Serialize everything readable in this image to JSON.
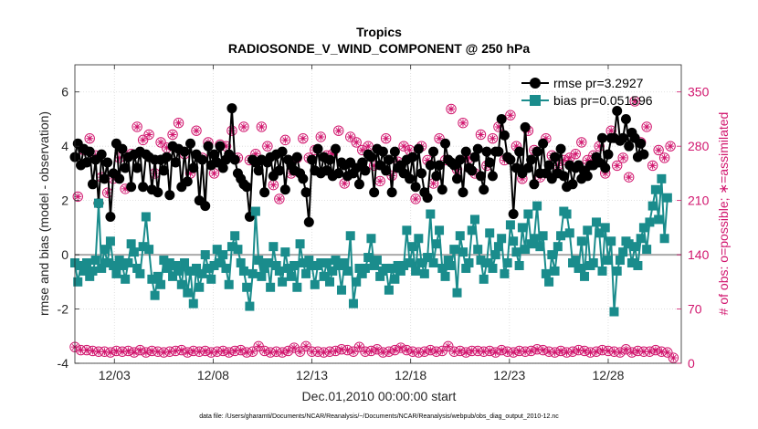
{
  "chart_data": {
    "type": "line",
    "title": "Tropics",
    "subtitle": "RADIOSONDE_V_WIND_COMPONENT @ 250 hPa",
    "xlabel": "Dec.01,2010 00:00:00 start",
    "ylabel": "rmse and bias (model - observation)",
    "ylabel_right": "# of obs: o=possible; ∗=assimilated",
    "footer": "data file: /Users/gharamti/Documents/NCAR/Reanalysis/~/Documents/NCAR/Reanalysis/webpub/obs_diag_output_2010-12.nc",
    "xlim": [
      1,
      31.7
    ],
    "ylim": [
      -4,
      7
    ],
    "ylim_right": [
      0,
      385
    ],
    "x_ticks": [
      3,
      8,
      13,
      18,
      23,
      28
    ],
    "x_tick_labels": [
      "12/03",
      "12/08",
      "12/13",
      "12/18",
      "12/23",
      "12/28"
    ],
    "y_ticks": [
      -4,
      -2,
      0,
      2,
      4,
      6
    ],
    "y_tick_labels": [
      "-4",
      "-2",
      "0",
      "2",
      "4",
      "6"
    ],
    "y_ticks_right": [
      0,
      70,
      140,
      210,
      280,
      350
    ],
    "y_tick_labels_right": [
      "0",
      "70",
      "140",
      "210",
      "280",
      "350"
    ],
    "grid": true,
    "legend_position": "top-right",
    "series": [
      {
        "name": "rmse pr=3.2927",
        "color": "#000000",
        "marker": "circle",
        "values": [
          3.6,
          4.1,
          3.3,
          3.9,
          3.4,
          3.8,
          2.6,
          3.5,
          1.9,
          3.7,
          2.8,
          3.4,
          1.4,
          3.0,
          4.1,
          2.8,
          3.9,
          3.2,
          3.6,
          2.5,
          3.7,
          3.2,
          3.8,
          2.5,
          3.7,
          3.6,
          2.4,
          3.5,
          2.3,
          3.5,
          3.1,
          3.6,
          2.2,
          4.0,
          3.4,
          3.9,
          2.5,
          3.8,
          2.7,
          4.1,
          3.2,
          3.7,
          2.0,
          3.5,
          1.8,
          4.0,
          3.3,
          3.7,
          3.4,
          4.0,
          3.2,
          3.5,
          3.7,
          5.4,
          3.5,
          3.0,
          2.8,
          2.6,
          2.5,
          1.4,
          3.5,
          3.4,
          3.1,
          3.5,
          2.3,
          3.4,
          3.6,
          2.9,
          3.7,
          3.1,
          3.8,
          2.4,
          3.5,
          3.3,
          3.1,
          3.6,
          3.0,
          2.8,
          2.3,
          1.2,
          3.5,
          3.1,
          3.9,
          3.0,
          3.6,
          3.1,
          3.5,
          2.9,
          3.9,
          3.0,
          3.4,
          3.3,
          2.9,
          3.4,
          3.0,
          3.2,
          2.6,
          3.4,
          3.1,
          3.7,
          3.6,
          2.3,
          3.9,
          3.3,
          3.8,
          3.1,
          3.5,
          2.3,
          3.8,
          3.2,
          3.3,
          3.0,
          3.5,
          2.8,
          3.6,
          2.5,
          3.9,
          3.0,
          2.3,
          2.1,
          3.3,
          3.8,
          2.9,
          3.3,
          2.4,
          4.1,
          3.5,
          3.4,
          3.3,
          2.8,
          3.5,
          2.3,
          3.8,
          3.2,
          3.1,
          3.6,
          3.9,
          2.9,
          2.4,
          3.8,
          3.4,
          2.9,
          3.8,
          3.8,
          5.0,
          4.4,
          3.6,
          3.5,
          1.5,
          3.2,
          3.8,
          3.0,
          4.7,
          3.2,
          3.5,
          2.6,
          3.8,
          3.0,
          4.1,
          3.0,
          3.3,
          2.8,
          3.6,
          3.0,
          3.9,
          2.9,
          2.5,
          3.3,
          2.6,
          3.2,
          3.3,
          2.8,
          3.1,
          2.9,
          3.3,
          3.3,
          3.6,
          3.4,
          4.3,
          3.2,
          3.7,
          4.3,
          4.3,
          5.3,
          4.2,
          4.3,
          5.0,
          4.0,
          4.5,
          4.3,
          3.6,
          4.1,
          3.7
        ]
      },
      {
        "name": "bias pr=0.051596",
        "color": "#1a8c8c",
        "marker": "square",
        "values": [
          -0.3,
          -1.0,
          -0.4,
          -0.6,
          -0.3,
          -0.8,
          -0.6,
          -0.2,
          1.9,
          -0.5,
          0.2,
          -0.3,
          0.5,
          -0.4,
          -0.7,
          -0.2,
          -0.4,
          -0.9,
          -0.3,
          0.4,
          0.1,
          -0.5,
          -0.7,
          0.3,
          1.4,
          0.2,
          -0.9,
          -1.5,
          -0.8,
          -1.1,
          -0.2,
          -0.5,
          -0.3,
          -0.8,
          -0.4,
          -0.6,
          -1.1,
          -0.3,
          -1.4,
          -0.6,
          -1.8,
          -0.5,
          -1.2,
          -0.7,
          0.0,
          -0.5,
          -0.9,
          -0.4,
          0.2,
          -0.3,
          0.0,
          -0.5,
          -1.1,
          0.3,
          0.7,
          0.2,
          -0.3,
          -0.6,
          -1.2,
          -1.9,
          -0.7,
          1.6,
          -0.2,
          -0.8,
          -0.5,
          -0.3,
          -1.2,
          0.3,
          -0.4,
          -0.6,
          -1.0,
          0.1,
          -0.5,
          -0.8,
          -0.4,
          -1.2,
          0.4,
          -0.3,
          -0.7,
          -0.2,
          -0.4,
          -1.1,
          -0.4,
          -0.3,
          -0.8,
          -0.3,
          -1.0,
          -0.6,
          -0.2,
          -0.4,
          -1.3,
          -0.3,
          -0.6,
          0.7,
          -1.8,
          -1.0,
          -0.5,
          -0.7,
          -0.5,
          -0.1,
          0.6,
          -0.4,
          -0.2,
          -0.8,
          -0.6,
          -0.5,
          -1.3,
          -0.5,
          -0.9,
          -0.4,
          -0.6,
          -0.4,
          0.9,
          -0.3,
          0.3,
          -0.6,
          0.6,
          -0.3,
          -0.7,
          -0.1,
          1.5,
          -0.3,
          0.4,
          0.9,
          -0.5,
          -0.8,
          -0.2,
          -0.4,
          0.2,
          -1.4,
          0.7,
          0.1,
          -0.5,
          -0.3,
          0.9,
          1.3,
          0.2,
          -0.2,
          -0.9,
          -0.3,
          0.8,
          -0.5,
          0.0,
          0.3,
          0.6,
          -0.7,
          -0.3,
          1.1,
          0.5,
          0.1,
          -0.4,
          1.0,
          0.2,
          1.5,
          0.4,
          0.6,
          1.8,
          0.3,
          0.7,
          -0.7,
          -1.0,
          0.0,
          -0.6,
          0.3,
          0.7,
          1.6,
          1.5,
          0.8,
          -0.3,
          -0.2,
          -0.5,
          0.5,
          -0.8,
          0.9,
          -0.4,
          -0.3,
          1.2,
          0.8,
          -0.6,
          1.0,
          -0.2,
          0.5,
          -2.1,
          -0.6,
          -0.2,
          0.1,
          0.5,
          0.4,
          -0.3,
          0.3,
          -0.4,
          0.6,
          1.0,
          0.2,
          1.2,
          1.8,
          2.4,
          1.3,
          2.8,
          0.6,
          2.1
        ]
      }
    ],
    "obs_series": [
      {
        "name": "possible",
        "color": "#d1166e",
        "marker": "circle",
        "values": [
          21,
          215,
          17,
          275,
          17,
          290,
          16,
          268,
          15,
          240,
          15,
          220,
          14,
          238,
          16,
          265,
          15,
          225,
          16,
          270,
          14,
          305,
          17,
          288,
          14,
          295,
          16,
          245,
          15,
          285,
          14,
          278,
          15,
          295,
          16,
          310,
          17,
          270,
          14,
          245,
          16,
          300,
          15,
          265,
          16,
          285,
          14,
          245,
          15,
          282,
          16,
          280,
          14,
          300,
          16,
          265,
          17,
          305,
          14,
          262,
          15,
          270,
          22,
          305,
          16,
          280,
          14,
          230,
          15,
          212,
          14,
          288,
          16,
          245,
          20,
          265,
          15,
          290,
          22,
          265,
          15,
          275,
          15,
          292,
          14,
          268,
          15,
          270,
          16,
          300,
          18,
          232,
          17,
          292,
          15,
          285,
          21,
          275,
          15,
          280,
          16,
          255,
          18,
          235,
          14,
          290,
          15,
          242,
          17,
          260,
          20,
          280,
          17,
          275,
          15,
          212,
          14,
          280,
          15,
          262,
          17,
          232,
          15,
          290,
          16,
          262,
          22,
          328,
          15,
          250,
          16,
          310,
          14,
          265,
          16,
          245,
          16,
          295,
          15,
          255,
          16,
          290,
          14,
          305,
          17,
          262,
          15,
          320,
          14,
          280,
          16,
          238,
          15,
          300,
          16,
          275,
          18,
          240,
          17,
          290,
          15,
          268,
          14,
          255,
          16,
          262,
          14,
          265,
          15,
          270,
          17,
          285,
          16,
          262,
          14,
          268,
          15,
          280,
          17,
          245,
          16,
          300,
          15,
          255,
          14,
          265,
          18,
          240,
          14,
          338,
          16,
          285,
          15,
          305,
          15,
          255,
          17,
          275,
          15,
          265,
          14,
          280,
          7
        ]
      },
      {
        "name": "assimilated",
        "color": "#d1166e",
        "marker": "asterisk",
        "values": [
          21,
          215,
          17,
          275,
          17,
          290,
          16,
          268,
          15,
          240,
          15,
          220,
          14,
          238,
          16,
          265,
          15,
          225,
          16,
          270,
          14,
          305,
          17,
          288,
          14,
          295,
          16,
          245,
          15,
          285,
          14,
          278,
          15,
          295,
          16,
          310,
          17,
          270,
          14,
          245,
          16,
          300,
          15,
          265,
          16,
          285,
          14,
          245,
          15,
          282,
          16,
          280,
          14,
          300,
          16,
          265,
          17,
          305,
          14,
          262,
          15,
          270,
          22,
          305,
          16,
          280,
          14,
          230,
          15,
          212,
          14,
          288,
          16,
          245,
          20,
          265,
          15,
          290,
          22,
          265,
          15,
          275,
          15,
          292,
          14,
          268,
          15,
          270,
          16,
          300,
          18,
          232,
          17,
          292,
          15,
          285,
          21,
          275,
          15,
          280,
          16,
          255,
          18,
          235,
          14,
          290,
          15,
          242,
          17,
          260,
          20,
          280,
          17,
          275,
          15,
          212,
          14,
          280,
          15,
          262,
          17,
          232,
          15,
          290,
          16,
          262,
          22,
          328,
          15,
          250,
          16,
          310,
          14,
          265,
          16,
          245,
          16,
          295,
          15,
          255,
          16,
          290,
          14,
          305,
          17,
          262,
          15,
          320,
          14,
          280,
          16,
          238,
          15,
          300,
          16,
          275,
          18,
          240,
          17,
          290,
          15,
          268,
          14,
          255,
          16,
          262,
          14,
          265,
          15,
          270,
          17,
          285,
          16,
          262,
          14,
          268,
          15,
          280,
          17,
          245,
          16,
          300,
          15,
          255,
          14,
          265,
          18,
          240,
          14,
          338,
          16,
          285,
          15,
          305,
          15,
          255,
          17,
          275,
          15,
          265,
          14,
          280,
          7
        ]
      }
    ],
    "x_start": 1.0,
    "x_step": 0.15
  }
}
